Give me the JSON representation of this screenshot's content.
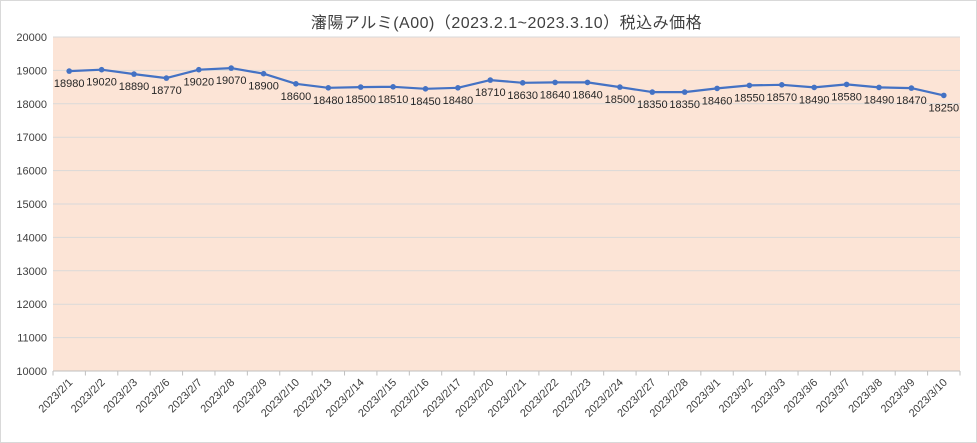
{
  "chart_data": {
    "type": "line",
    "title": "瀋陽アルミ(A00)（2023.2.1~2023.3.10）税込み価格",
    "categories": [
      "2023/2/1",
      "2023/2/2",
      "2023/2/3",
      "2023/2/6",
      "2023/2/7",
      "2023/2/8",
      "2023/2/9",
      "2023/2/10",
      "2023/2/13",
      "2023/2/14",
      "2023/2/15",
      "2023/2/16",
      "2023/2/17",
      "2023/2/20",
      "2023/2/21",
      "2023/2/22",
      "2023/2/23",
      "2023/2/24",
      "2023/2/27",
      "2023/2/28",
      "2023/3/1",
      "2023/3/2",
      "2023/3/3",
      "2023/3/6",
      "2023/3/7",
      "2023/3/8",
      "2023/3/9",
      "2023/3/10"
    ],
    "values": [
      18980,
      19020,
      18890,
      18770,
      19020,
      19070,
      18900,
      18600,
      18480,
      18500,
      18510,
      18450,
      18480,
      18710,
      18630,
      18640,
      18640,
      18500,
      18350,
      18350,
      18460,
      18550,
      18570,
      18490,
      18580,
      18490,
      18470,
      18250
    ],
    "xlabel": "",
    "ylabel": "",
    "ylim": [
      10000,
      20000
    ],
    "ytick_step": 1000,
    "grid": "horizontal",
    "legend": "none",
    "data_labels": "below points",
    "colors": {
      "line": "#4472C4",
      "marker": "#4472C4",
      "plot_background": "#FCE4D6",
      "gridline": "#D9D9D9",
      "axis_line": "#BFBFBF",
      "axis_text": "#404040",
      "label_text": "#262626",
      "title_text": "#404040",
      "frame_border": "#D9D9D9"
    }
  }
}
